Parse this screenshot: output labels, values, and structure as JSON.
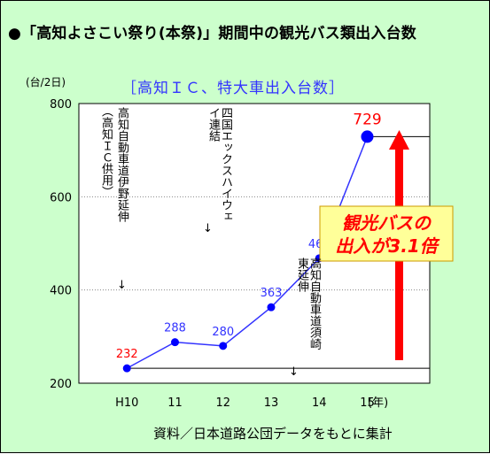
{
  "page": {
    "title": "●「高知よさこい祭り(本祭)」期間中の観光バス類出入台数",
    "source_note": "資料／日本道路公団データをもとに集計"
  },
  "chart_data": {
    "type": "line",
    "title": "［高知ＩＣ、特大車出入台数］",
    "unit_label": "(台/2日)",
    "xlabel_suffix": "(年)",
    "categories": [
      "H10",
      "11",
      "12",
      "13",
      "14",
      "15"
    ],
    "series": [
      {
        "values": [
          232,
          288,
          280,
          363,
          468,
          729
        ]
      }
    ],
    "ylim": [
      200,
      800
    ],
    "yticks": [
      200,
      400,
      600,
      800
    ],
    "grid": "dotted horizontal at 400 and 600",
    "colors": {
      "line": "#3333ff",
      "label": "#3333ff",
      "label_highlight": "#ff0000",
      "arrow": "#ff0000",
      "callout_bg": "#ffff99",
      "callout_text": "#ff0000"
    },
    "annotations": {
      "opening_1": {
        "paren": "（高知ＩＣ供用）",
        "text": "高知自動車道伊野延伸",
        "arrow": "↓"
      },
      "opening_2": {
        "text": "四国エックスハイウェイ連結",
        "arrow": "↓"
      },
      "opening_3": {
        "text": "高知自動車道須崎東延伸",
        "arrow": "↓"
      },
      "callout": {
        "line1": "観光バスの",
        "line2": "出入が3.1倍"
      }
    }
  }
}
